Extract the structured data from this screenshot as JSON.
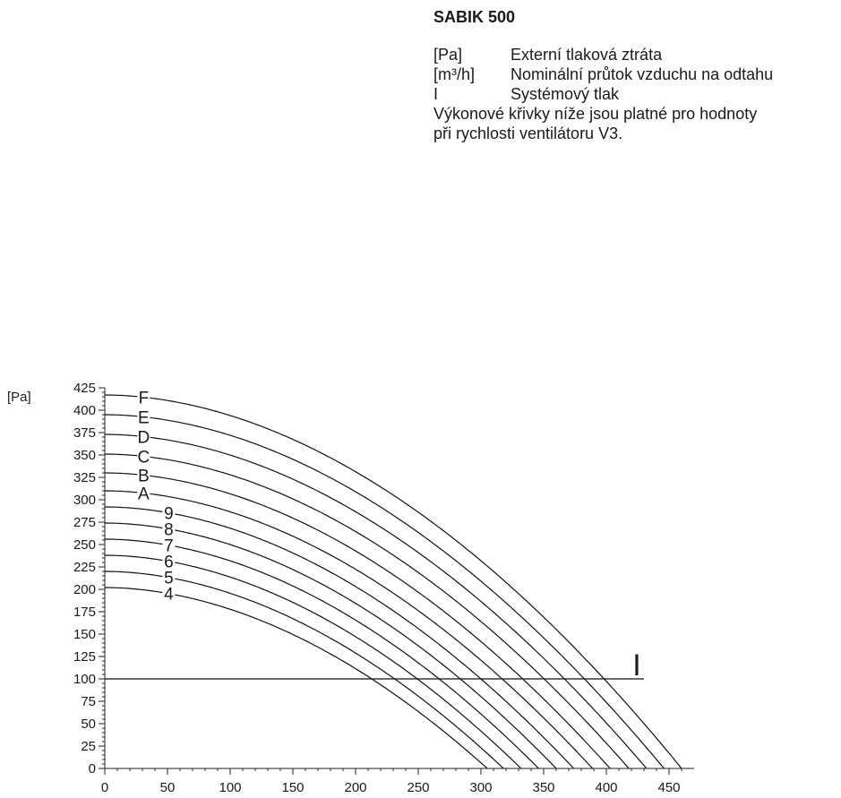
{
  "legend": {
    "title": "SABIK 500",
    "rows": [
      {
        "key": "[Pa]",
        "text": "Externí tlaková ztráta"
      },
      {
        "key": "[m³/h]",
        "text": "Nominální průtok vzduchu na odtahu"
      },
      {
        "key": "I",
        "text": "Systémový tlak"
      }
    ],
    "note_line1": "Výkonové křivky níže jsou platné pro hodnoty",
    "note_line2": "při rychlosti ventilátoru V3."
  },
  "chart_data": {
    "type": "line",
    "title": "SABIK 500",
    "xlabel": "",
    "ylabel": "[Pa]",
    "xlim": [
      0,
      460
    ],
    "ylim": [
      0,
      425
    ],
    "xticks": [
      0,
      50,
      100,
      150,
      200,
      250,
      300,
      350,
      400,
      450
    ],
    "yticks": [
      0,
      25,
      50,
      75,
      100,
      125,
      150,
      175,
      200,
      225,
      250,
      275,
      300,
      325,
      350,
      375,
      400,
      425
    ],
    "series": [
      {
        "name": "4",
        "p0": 202,
        "xmax": 305,
        "label_x": 50
      },
      {
        "name": "5",
        "p0": 220,
        "xmax": 318,
        "label_x": 50
      },
      {
        "name": "6",
        "p0": 238,
        "xmax": 332,
        "label_x": 50
      },
      {
        "name": "7",
        "p0": 256,
        "xmax": 346,
        "label_x": 50
      },
      {
        "name": "8",
        "p0": 274,
        "xmax": 360,
        "label_x": 50
      },
      {
        "name": "9",
        "p0": 292,
        "xmax": 374,
        "label_x": 50
      },
      {
        "name": "A",
        "p0": 310,
        "xmax": 389,
        "label_x": 30
      },
      {
        "name": "B",
        "p0": 330,
        "xmax": 403,
        "label_x": 30
      },
      {
        "name": "C",
        "p0": 351,
        "xmax": 418,
        "label_x": 30
      },
      {
        "name": "D",
        "p0": 373,
        "xmax": 432,
        "label_x": 30
      },
      {
        "name": "E",
        "p0": 395,
        "xmax": 446,
        "label_x": 30
      },
      {
        "name": "F",
        "p0": 417,
        "xmax": 460,
        "label_x": 30
      }
    ],
    "system_line": {
      "name": "I",
      "y": 100,
      "x_end": 430
    }
  }
}
